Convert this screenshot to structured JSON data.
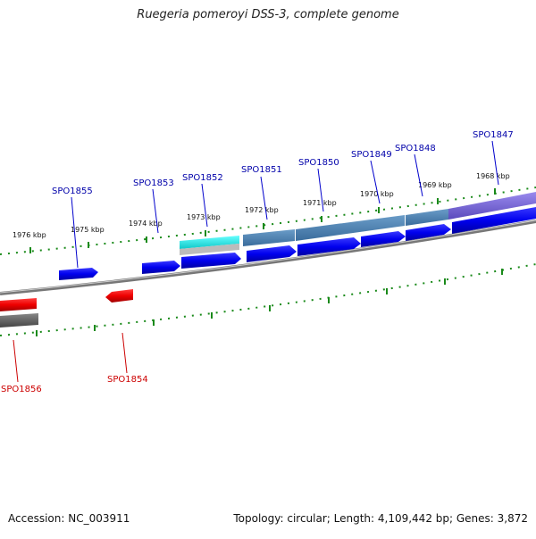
{
  "title": "Ruegeria pomeroyi DSS-3, complete genome",
  "footer": {
    "accession": "Accession: NC_003911",
    "summary": "Topology: circular; Length: 4,109,442 bp; Genes: 3,872"
  },
  "colors": {
    "forward_gene": "#0000ee",
    "reverse_gene": "#ee0000",
    "forward_label": "#0000aa",
    "reverse_label": "#cc0000",
    "tick": "#1a8a1a",
    "backbone": "#888888",
    "cds_cyan": "#22e0e0",
    "cds_steel": "#4f86b8",
    "cds_purple": "#7a6ad8",
    "cds_gray": "#555555"
  },
  "scale_labels": [
    "1976 kbp",
    "1975 kbp",
    "1974 kbp",
    "1973 kbp",
    "1972 kbp",
    "1971 kbp",
    "1970 kbp",
    "1969 kbp",
    "1968 kbp"
  ],
  "forward_genes": [
    "SPO1855",
    "SPO1853",
    "SPO1852",
    "SPO1851",
    "SPO1850",
    "SPO1849",
    "SPO1848",
    "SPO1847"
  ],
  "reverse_genes": [
    "SPO1856",
    "SPO1854"
  ]
}
